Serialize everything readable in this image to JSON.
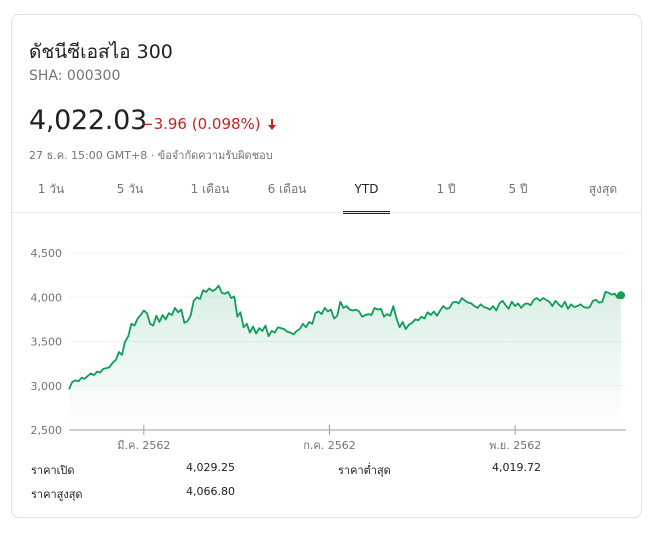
{
  "quote": {
    "name": "ดัชนีซีเอสไอ 300",
    "ticker": "SHA: 000300",
    "price": "4,022.03",
    "change": "−3.96 (0.098%)",
    "timestamp": "27 ธ.ค. 15:00 GMT+8",
    "separator": " · ",
    "disclaimer": "ข้อจำกัดความรับผิดชอบ"
  },
  "colors": {
    "up": "#0f9d58",
    "down": "#c5221f",
    "fill": "#e6f4ea",
    "grid": "#f1f3f4"
  },
  "tabs": [
    {
      "label": "1 วัน"
    },
    {
      "label": "5 วัน"
    },
    {
      "label": "1 เดือน"
    },
    {
      "label": "6 เดือน"
    },
    {
      "label": "YTD",
      "active": true
    },
    {
      "label": "1 ปี"
    },
    {
      "label": "5 ปี"
    },
    {
      "label": "สูงสุด"
    }
  ],
  "stats": [
    {
      "label": "ราคาเปิด",
      "value": "4,029.25"
    },
    {
      "label": "ราคาต่ำสุด",
      "value": "4,019.72"
    },
    {
      "label": "ราคาสูงสุด",
      "value": "4,066.80"
    }
  ],
  "chart_data": {
    "type": "area",
    "ylim": [
      2500,
      4500
    ],
    "yticks": [
      "4,500",
      "4,000",
      "3,500",
      "3,000",
      "2,500"
    ],
    "ytick_values": [
      4500,
      4000,
      3500,
      3000,
      2500
    ],
    "xlabels": [
      "มี.ค. 2562",
      "ก.ค. 2562",
      "พ.ย. 2562"
    ],
    "xlabel_months": [
      2,
      6,
      10
    ],
    "months_span": 12,
    "grid": true,
    "series": [
      {
        "values": [
          2960,
          3040,
          3060,
          3050,
          3090,
          3080,
          3110,
          3140,
          3120,
          3160,
          3150,
          3190,
          3200,
          3210,
          3260,
          3290,
          3380,
          3350,
          3500,
          3560,
          3700,
          3680,
          3760,
          3800,
          3850,
          3820,
          3700,
          3680,
          3790,
          3720,
          3800,
          3750,
          3820,
          3800,
          3880,
          3830,
          3860,
          3710,
          3730,
          3790,
          3960,
          4000,
          3980,
          4080,
          4060,
          4100,
          4070,
          4090,
          4130,
          4050,
          4040,
          4060,
          3990,
          4010,
          3780,
          3830,
          3660,
          3700,
          3600,
          3670,
          3590,
          3650,
          3620,
          3680,
          3560,
          3620,
          3600,
          3660,
          3650,
          3640,
          3610,
          3600,
          3580,
          3620,
          3640,
          3700,
          3660,
          3720,
          3700,
          3820,
          3840,
          3810,
          3880,
          3840,
          3860,
          3760,
          3790,
          3950,
          3880,
          3900,
          3860,
          3850,
          3860,
          3840,
          3780,
          3800,
          3810,
          3800,
          3880,
          3860,
          3870,
          3780,
          3810,
          3790,
          3900,
          3760,
          3660,
          3720,
          3640,
          3690,
          3710,
          3750,
          3740,
          3780,
          3760,
          3830,
          3800,
          3840,
          3790,
          3850,
          3900,
          3870,
          3880,
          3940,
          3950,
          3930,
          3990,
          3960,
          3940,
          3930,
          3900,
          3880,
          3920,
          3890,
          3880,
          3860,
          3900,
          3850,
          3930,
          3960,
          3910,
          3870,
          3950,
          3900,
          3930,
          3880,
          3920,
          3930,
          3910,
          3970,
          3990,
          3960,
          3990,
          3970,
          3950,
          3900,
          3960,
          3920,
          3890,
          3950,
          3870,
          3920,
          3890,
          3900,
          3920,
          3890,
          3880,
          3890,
          3960,
          3970,
          3940,
          3950,
          4060,
          4050,
          4030,
          4040,
          3990,
          4022
        ]
      }
    ]
  }
}
